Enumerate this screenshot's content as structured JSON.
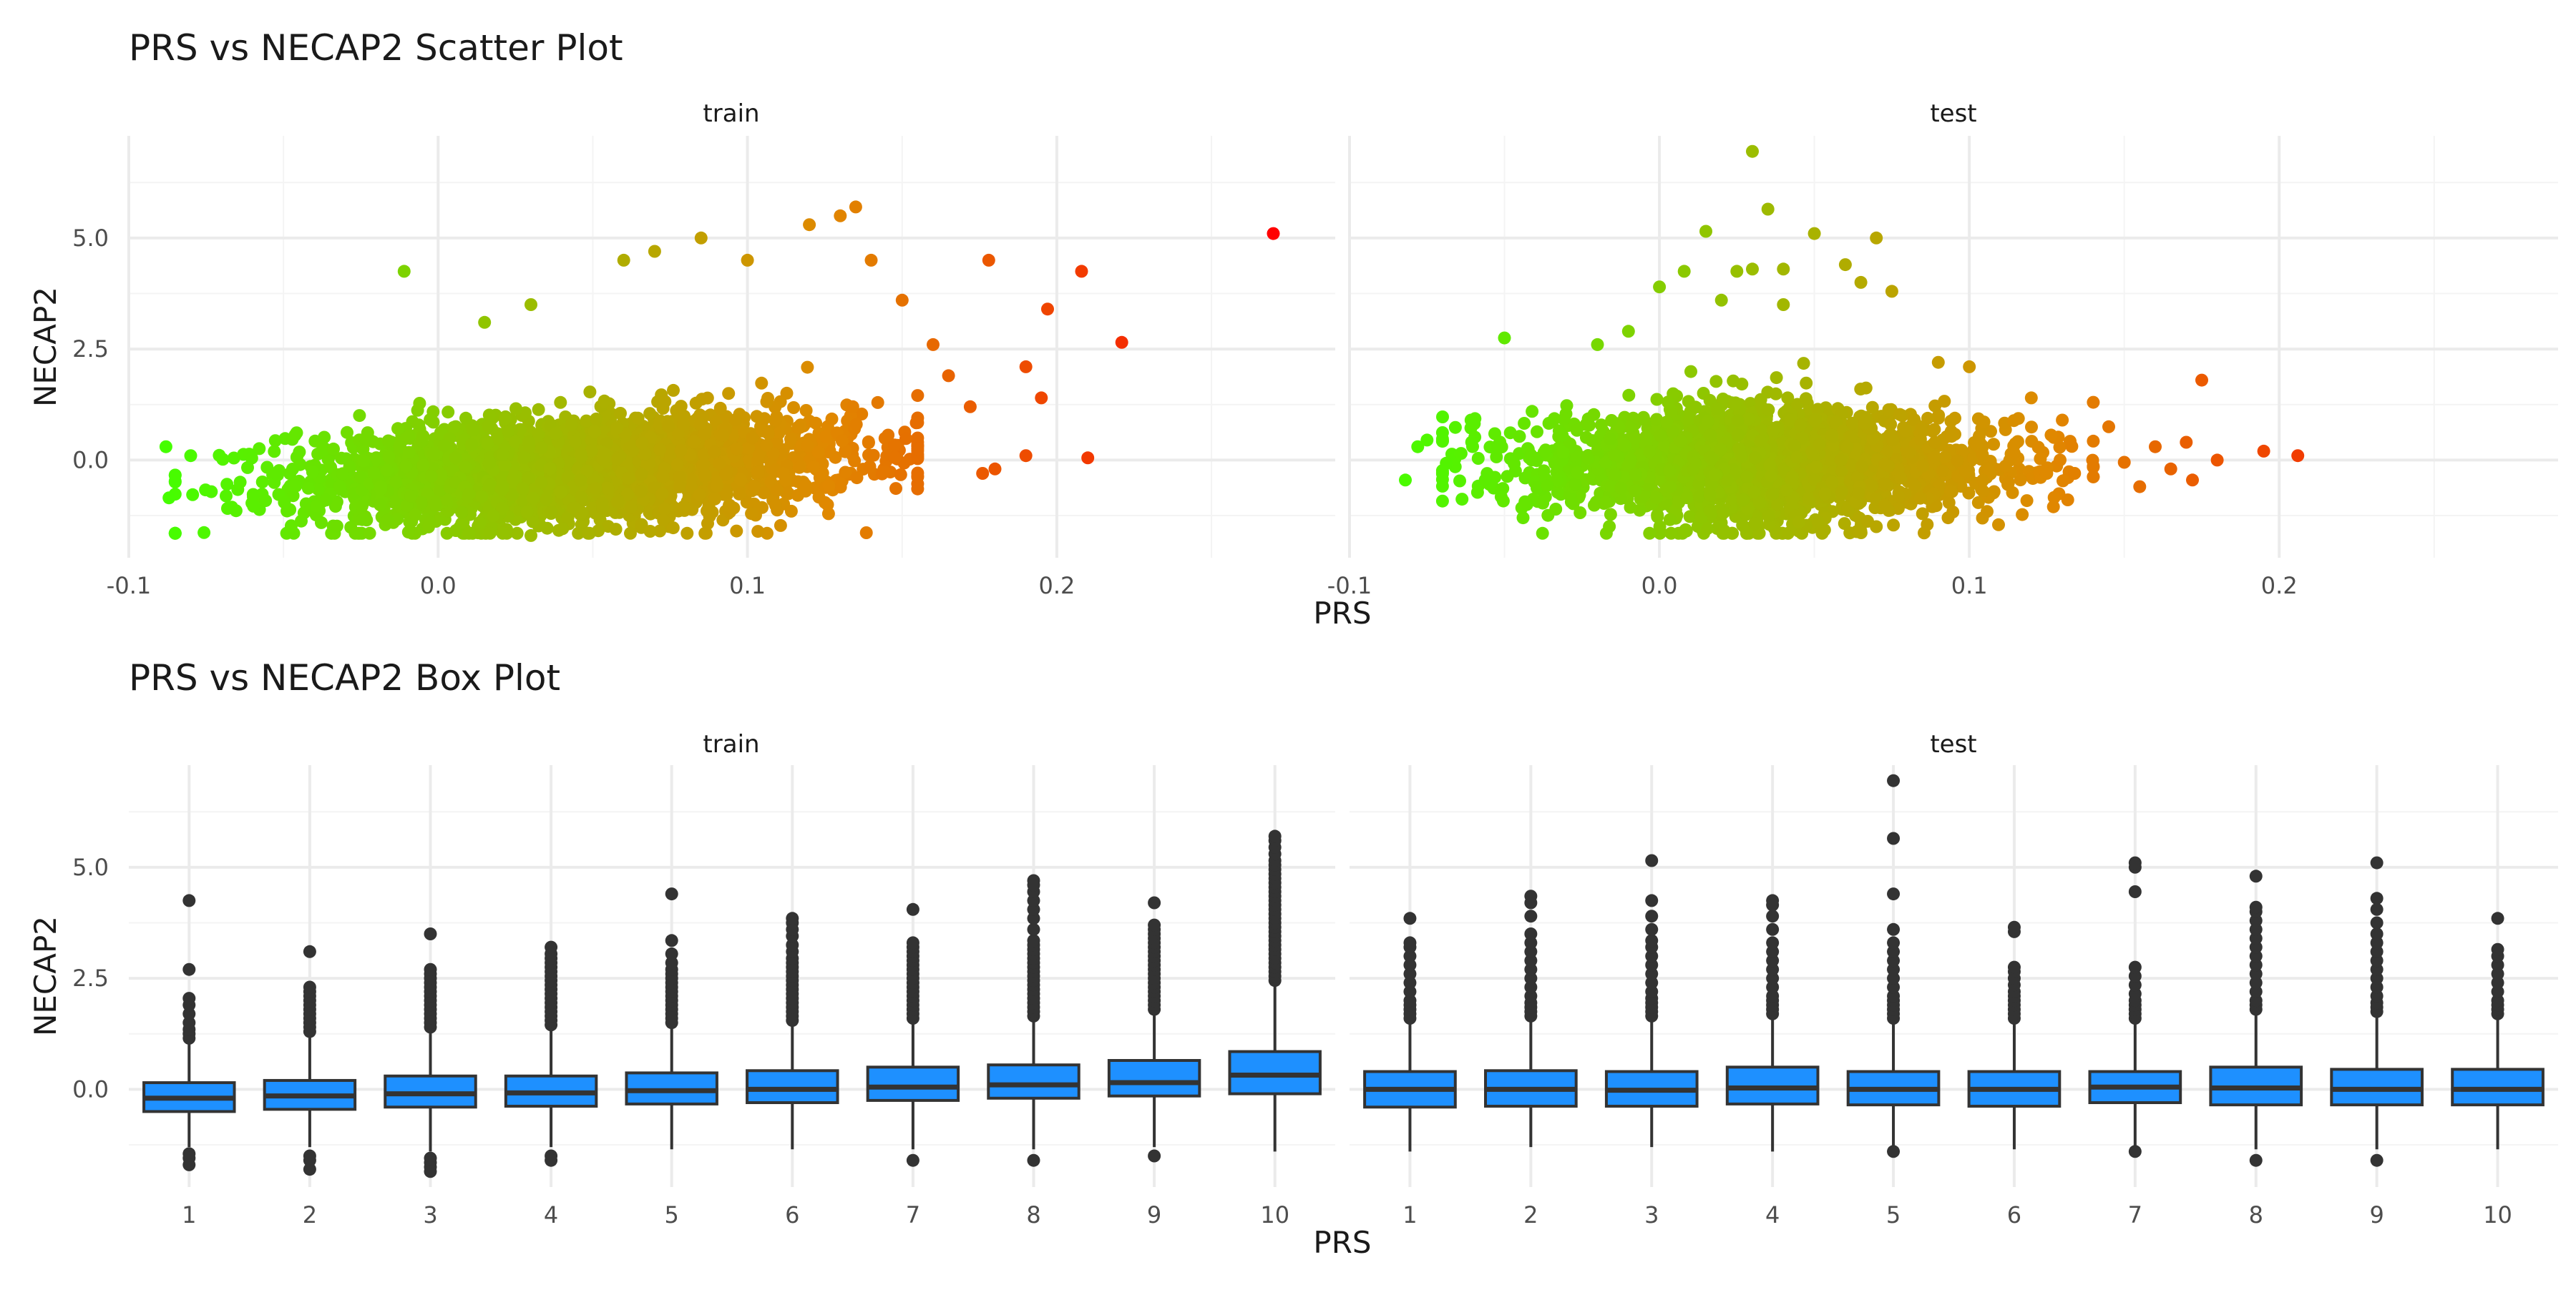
{
  "chart_data": [
    {
      "type": "scatter",
      "title": "PRS vs NECAP2 Scatter Plot",
      "xlabel": "PRS",
      "ylabel": "NECAP2",
      "xlim": [
        -0.1,
        0.29
      ],
      "ylim": [
        -2.2,
        7.3
      ],
      "x_ticks": [
        -0.1,
        0.0,
        0.1,
        0.2
      ],
      "x_tick_labels": [
        "-0.1",
        "0.0",
        "0.1",
        "0.2"
      ],
      "y_ticks": [
        0.0,
        2.5,
        5.0
      ],
      "y_tick_labels": [
        "0.0",
        "2.5",
        "5.0"
      ],
      "color_gradient": {
        "low": "#44ff00",
        "mid": "#e08800",
        "high": "#ff0000",
        "by": "x"
      },
      "panels": [
        {
          "facet": "train",
          "cloud": {
            "n": 2600,
            "x_mean": 0.045,
            "x_sd": 0.045,
            "x_range": [
              -0.085,
              0.155
            ],
            "y_base": -0.35,
            "y_slope": 3.2,
            "y_sd": 0.6
          },
          "points": [
            {
              "x": -0.088,
              "y": 0.3
            },
            {
              "x": -0.087,
              "y": -0.85
            },
            {
              "x": -0.08,
              "y": 0.1
            },
            {
              "x": -0.011,
              "y": 4.25
            },
            {
              "x": 0.015,
              "y": 3.1
            },
            {
              "x": 0.03,
              "y": 3.5
            },
            {
              "x": 0.03,
              "y": -1.7
            },
            {
              "x": 0.06,
              "y": 4.5
            },
            {
              "x": 0.07,
              "y": 4.7
            },
            {
              "x": 0.085,
              "y": 5.0
            },
            {
              "x": 0.1,
              "y": 4.5
            },
            {
              "x": 0.12,
              "y": 5.3
            },
            {
              "x": 0.13,
              "y": 5.5
            },
            {
              "x": 0.135,
              "y": 5.7
            },
            {
              "x": 0.14,
              "y": 4.5
            },
            {
              "x": 0.15,
              "y": 3.6
            },
            {
              "x": 0.16,
              "y": 2.6
            },
            {
              "x": 0.165,
              "y": 1.9
            },
            {
              "x": 0.172,
              "y": 1.2
            },
            {
              "x": 0.176,
              "y": -0.3
            },
            {
              "x": 0.178,
              "y": 4.5
            },
            {
              "x": 0.18,
              "y": -0.2
            },
            {
              "x": 0.19,
              "y": 0.1
            },
            {
              "x": 0.19,
              "y": 2.1
            },
            {
              "x": 0.195,
              "y": 1.4
            },
            {
              "x": 0.197,
              "y": 3.4
            },
            {
              "x": 0.208,
              "y": 4.25
            },
            {
              "x": 0.21,
              "y": 0.05
            },
            {
              "x": 0.221,
              "y": 2.65
            },
            {
              "x": 0.27,
              "y": 5.1
            }
          ]
        },
        {
          "facet": "test",
          "cloud": {
            "n": 2200,
            "x_mean": 0.035,
            "x_sd": 0.038,
            "x_range": [
              -0.07,
              0.14
            ],
            "y_base": -0.1,
            "y_slope": 0.0,
            "y_sd": 0.55
          },
          "points": [
            {
              "x": -0.082,
              "y": -0.45
            },
            {
              "x": -0.078,
              "y": 0.3
            },
            {
              "x": -0.075,
              "y": 0.45
            },
            {
              "x": -0.064,
              "y": 0.15
            },
            {
              "x": -0.05,
              "y": 2.75
            },
            {
              "x": -0.044,
              "y": -1.3
            },
            {
              "x": -0.02,
              "y": 2.6
            },
            {
              "x": -0.01,
              "y": 2.9
            },
            {
              "x": 0.0,
              "y": 3.9
            },
            {
              "x": 0.008,
              "y": 4.25
            },
            {
              "x": 0.015,
              "y": 5.15
            },
            {
              "x": 0.02,
              "y": 3.6
            },
            {
              "x": 0.025,
              "y": 4.25
            },
            {
              "x": 0.03,
              "y": 4.3
            },
            {
              "x": 0.03,
              "y": 6.95
            },
            {
              "x": 0.035,
              "y": 5.65
            },
            {
              "x": 0.04,
              "y": 4.3
            },
            {
              "x": 0.04,
              "y": 3.5
            },
            {
              "x": 0.045,
              "y": -1.4
            },
            {
              "x": 0.05,
              "y": 5.1
            },
            {
              "x": 0.06,
              "y": 4.4
            },
            {
              "x": 0.065,
              "y": 4.0
            },
            {
              "x": 0.07,
              "y": 5.0
            },
            {
              "x": 0.075,
              "y": 3.8
            },
            {
              "x": 0.07,
              "y": -1.5
            },
            {
              "x": 0.09,
              "y": 2.2
            },
            {
              "x": 0.1,
              "y": 2.1
            },
            {
              "x": 0.12,
              "y": 1.4
            },
            {
              "x": 0.14,
              "y": 1.3
            },
            {
              "x": 0.145,
              "y": 0.75
            },
            {
              "x": 0.15,
              "y": -0.05
            },
            {
              "x": 0.16,
              "y": 0.3
            },
            {
              "x": 0.165,
              "y": -0.2
            },
            {
              "x": 0.17,
              "y": 0.4
            },
            {
              "x": 0.175,
              "y": 1.8
            },
            {
              "x": 0.172,
              "y": -0.45
            },
            {
              "x": 0.155,
              "y": -0.6
            },
            {
              "x": 0.18,
              "y": 0.0
            },
            {
              "x": 0.195,
              "y": 0.2
            },
            {
              "x": 0.206,
              "y": 0.1
            },
            {
              "x": 0.125,
              "y": -0.3
            },
            {
              "x": 0.13,
              "y": 0.9
            }
          ]
        }
      ]
    },
    {
      "type": "box",
      "title": "PRS vs NECAP2 Box Plot",
      "xlabel": "PRS",
      "ylabel": "NECAP2",
      "categories": [
        "1",
        "2",
        "3",
        "4",
        "5",
        "6",
        "7",
        "8",
        "9",
        "10"
      ],
      "ylim": [
        -2.2,
        7.3
      ],
      "y_ticks": [
        0.0,
        2.5,
        5.0
      ],
      "y_tick_labels": [
        "0.0",
        "2.5",
        "5.0"
      ],
      "box_color": "#1e90ff",
      "panels": [
        {
          "facet": "train",
          "boxes": [
            {
              "cat": "1",
              "q1": -0.5,
              "median": -0.2,
              "q3": 0.15,
              "lo": -1.3,
              "hi": 1.1,
              "outliers": [
                1.15,
                1.25,
                1.35,
                1.5,
                1.7,
                1.9,
                2.05,
                2.7,
                4.25,
                -1.45,
                -1.55,
                -1.7
              ]
            },
            {
              "cat": "2",
              "q1": -0.45,
              "median": -0.15,
              "q3": 0.2,
              "lo": -1.3,
              "hi": 1.2,
              "outliers": [
                1.3,
                1.4,
                1.5,
                1.6,
                1.7,
                1.8,
                1.9,
                2.0,
                2.1,
                2.2,
                2.3,
                3.1,
                -1.5,
                -1.6,
                -1.8
              ]
            },
            {
              "cat": "3",
              "q1": -0.4,
              "median": -0.1,
              "q3": 0.3,
              "lo": -1.4,
              "hi": 1.3,
              "outliers": [
                1.4,
                1.5,
                1.6,
                1.7,
                1.8,
                1.9,
                2.0,
                2.1,
                2.2,
                2.3,
                2.4,
                2.5,
                2.6,
                2.7,
                3.5,
                -1.55,
                -1.65,
                -1.75,
                -1.85
              ]
            },
            {
              "cat": "4",
              "q1": -0.38,
              "median": -0.08,
              "q3": 0.3,
              "lo": -1.3,
              "hi": 1.35,
              "outliers": [
                1.45,
                1.55,
                1.65,
                1.75,
                1.85,
                1.95,
                2.05,
                2.15,
                2.25,
                2.35,
                2.45,
                2.55,
                2.65,
                2.75,
                2.85,
                2.95,
                3.05,
                3.2,
                -1.5,
                -1.6
              ]
            },
            {
              "cat": "5",
              "q1": -0.33,
              "median": -0.03,
              "q3": 0.37,
              "lo": -1.35,
              "hi": 1.4,
              "outliers": [
                1.5,
                1.6,
                1.7,
                1.8,
                1.9,
                2.0,
                2.1,
                2.2,
                2.3,
                2.4,
                2.5,
                2.6,
                2.7,
                2.85,
                3.05,
                3.35,
                4.4
              ]
            },
            {
              "cat": "6",
              "q1": -0.3,
              "median": 0.0,
              "q3": 0.42,
              "lo": -1.35,
              "hi": 1.45,
              "outliers": [
                1.55,
                1.65,
                1.75,
                1.85,
                1.95,
                2.05,
                2.15,
                2.25,
                2.35,
                2.45,
                2.55,
                2.65,
                2.75,
                2.85,
                2.95,
                3.1,
                3.25,
                3.45,
                3.6,
                3.75,
                3.85
              ]
            },
            {
              "cat": "7",
              "q1": -0.25,
              "median": 0.05,
              "q3": 0.5,
              "lo": -1.35,
              "hi": 1.5,
              "outliers": [
                1.6,
                1.7,
                1.8,
                1.9,
                2.0,
                2.1,
                2.2,
                2.3,
                2.4,
                2.5,
                2.6,
                2.7,
                2.8,
                2.9,
                3.0,
                3.1,
                3.2,
                3.3,
                4.05,
                -1.6
              ]
            },
            {
              "cat": "8",
              "q1": -0.2,
              "median": 0.1,
              "q3": 0.55,
              "lo": -1.35,
              "hi": 1.55,
              "outliers": [
                1.65,
                1.75,
                1.85,
                1.95,
                2.05,
                2.15,
                2.25,
                2.35,
                2.45,
                2.55,
                2.65,
                2.75,
                2.85,
                2.95,
                3.05,
                3.15,
                3.25,
                3.35,
                3.6,
                3.85,
                4.05,
                4.25,
                4.45,
                4.6,
                4.7,
                -1.6
              ]
            },
            {
              "cat": "9",
              "q1": -0.15,
              "median": 0.15,
              "q3": 0.65,
              "lo": -1.3,
              "hi": 1.7,
              "outliers": [
                1.8,
                1.9,
                2.0,
                2.1,
                2.2,
                2.3,
                2.4,
                2.5,
                2.6,
                2.7,
                2.8,
                2.9,
                3.0,
                3.1,
                3.2,
                3.3,
                3.4,
                3.5,
                3.6,
                3.7,
                4.2,
                -1.5
              ]
            },
            {
              "cat": "10",
              "q1": -0.1,
              "median": 0.32,
              "q3": 0.85,
              "lo": -1.4,
              "hi": 2.35,
              "outliers": [
                2.45,
                2.55,
                2.65,
                2.75,
                2.85,
                2.95,
                3.05,
                3.15,
                3.25,
                3.35,
                3.45,
                3.55,
                3.65,
                3.75,
                3.85,
                3.95,
                4.05,
                4.15,
                4.25,
                4.35,
                4.45,
                4.55,
                4.65,
                4.75,
                4.85,
                4.95,
                5.05,
                5.15,
                5.3,
                5.45,
                5.6,
                5.7
              ]
            }
          ]
        },
        {
          "facet": "test",
          "boxes": [
            {
              "cat": "1",
              "q1": -0.4,
              "median": 0.0,
              "q3": 0.4,
              "lo": -1.4,
              "hi": 1.5,
              "outliers": [
                1.6,
                1.7,
                1.8,
                1.9,
                2.0,
                2.2,
                2.4,
                2.6,
                2.8,
                3.0,
                3.2,
                3.3,
                3.85
              ]
            },
            {
              "cat": "2",
              "q1": -0.38,
              "median": 0.0,
              "q3": 0.42,
              "lo": -1.3,
              "hi": 1.55,
              "outliers": [
                1.65,
                1.75,
                1.85,
                1.95,
                2.1,
                2.3,
                2.5,
                2.7,
                2.9,
                3.1,
                3.3,
                3.5,
                3.9,
                4.2,
                4.35
              ]
            },
            {
              "cat": "3",
              "q1": -0.38,
              "median": -0.02,
              "q3": 0.4,
              "lo": -1.3,
              "hi": 1.55,
              "outliers": [
                1.65,
                1.75,
                1.85,
                1.95,
                2.05,
                2.2,
                2.4,
                2.6,
                2.8,
                3.0,
                3.2,
                3.35,
                3.6,
                3.9,
                4.25,
                5.15
              ]
            },
            {
              "cat": "4",
              "q1": -0.33,
              "median": 0.03,
              "q3": 0.5,
              "lo": -1.4,
              "hi": 1.6,
              "outliers": [
                1.7,
                1.8,
                1.9,
                2.0,
                2.1,
                2.3,
                2.5,
                2.7,
                2.9,
                3.1,
                3.3,
                3.6,
                3.9,
                4.15,
                4.25
              ]
            },
            {
              "cat": "5",
              "q1": -0.35,
              "median": 0.0,
              "q3": 0.4,
              "lo": -1.3,
              "hi": 1.5,
              "outliers": [
                1.6,
                1.7,
                1.8,
                1.9,
                2.0,
                2.1,
                2.3,
                2.5,
                2.7,
                2.9,
                3.1,
                3.3,
                3.6,
                4.4,
                5.65,
                6.95,
                -1.4
              ]
            },
            {
              "cat": "6",
              "q1": -0.38,
              "median": 0.0,
              "q3": 0.4,
              "lo": -1.35,
              "hi": 1.5,
              "outliers": [
                1.6,
                1.7,
                1.8,
                1.9,
                2.0,
                2.1,
                2.2,
                2.35,
                2.5,
                2.65,
                2.75,
                3.55,
                3.65
              ]
            },
            {
              "cat": "7",
              "q1": -0.3,
              "median": 0.05,
              "q3": 0.4,
              "lo": -1.3,
              "hi": 1.5,
              "outliers": [
                1.6,
                1.7,
                1.8,
                1.9,
                2.0,
                2.15,
                2.35,
                2.55,
                2.75,
                4.45,
                5.0,
                5.1,
                -1.4
              ]
            },
            {
              "cat": "8",
              "q1": -0.35,
              "median": 0.03,
              "q3": 0.5,
              "lo": -1.35,
              "hi": 1.7,
              "outliers": [
                1.8,
                1.9,
                2.0,
                2.2,
                2.4,
                2.6,
                2.8,
                3.0,
                3.2,
                3.4,
                3.6,
                3.8,
                4.0,
                4.1,
                4.8,
                -1.6
              ]
            },
            {
              "cat": "9",
              "q1": -0.35,
              "median": 0.0,
              "q3": 0.45,
              "lo": -1.35,
              "hi": 1.65,
              "outliers": [
                1.75,
                1.85,
                1.95,
                2.1,
                2.3,
                2.5,
                2.7,
                2.9,
                3.1,
                3.3,
                3.5,
                3.75,
                4.05,
                4.3,
                5.1,
                -1.6
              ]
            },
            {
              "cat": "10",
              "q1": -0.35,
              "median": 0.0,
              "q3": 0.45,
              "lo": -1.35,
              "hi": 1.6,
              "outliers": [
                1.7,
                1.8,
                1.9,
                2.0,
                2.2,
                2.4,
                2.6,
                2.8,
                3.0,
                3.15,
                3.85
              ]
            }
          ]
        }
      ]
    }
  ]
}
